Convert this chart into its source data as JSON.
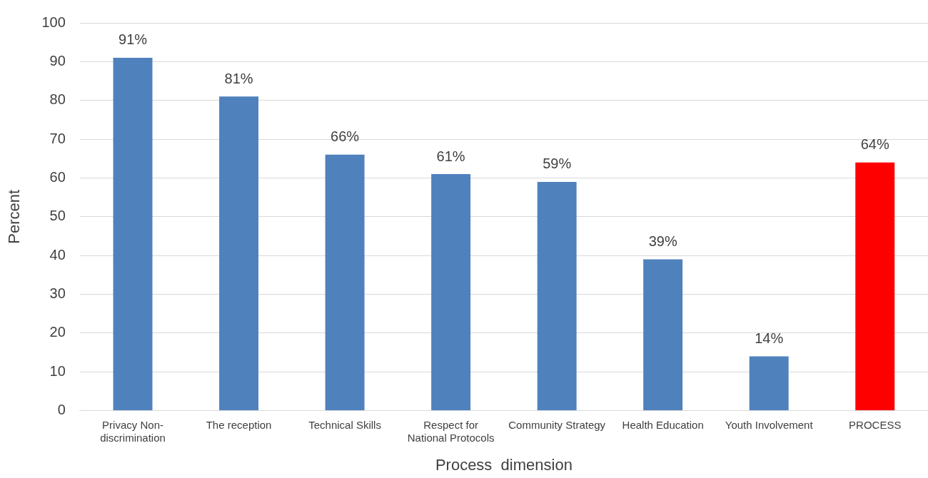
{
  "chart_data": {
    "type": "bar",
    "xlabel": "Process  dimension",
    "ylabel": "Percent",
    "categories": [
      "Privacy Non-discrimination",
      "The reception",
      "Technical Skills",
      "Respect for National Protocols",
      "Community Strategy",
      "Health Education",
      "Youth Involvement",
      "PROCESS"
    ],
    "values": [
      91,
      81,
      66,
      61,
      59,
      39,
      14,
      64
    ],
    "value_labels": [
      "91%",
      "81%",
      "66%",
      "61%",
      "59%",
      "39%",
      "14%",
      "64%"
    ],
    "colors": [
      "#4f81bd",
      "#4f81bd",
      "#4f81bd",
      "#4f81bd",
      "#4f81bd",
      "#4f81bd",
      "#4f81bd",
      "#ff0000"
    ],
    "ylim": [
      0,
      100
    ],
    "yticks": [
      0,
      10,
      20,
      30,
      40,
      50,
      60,
      70,
      80,
      90,
      100
    ],
    "grid": "y",
    "legend": false
  }
}
